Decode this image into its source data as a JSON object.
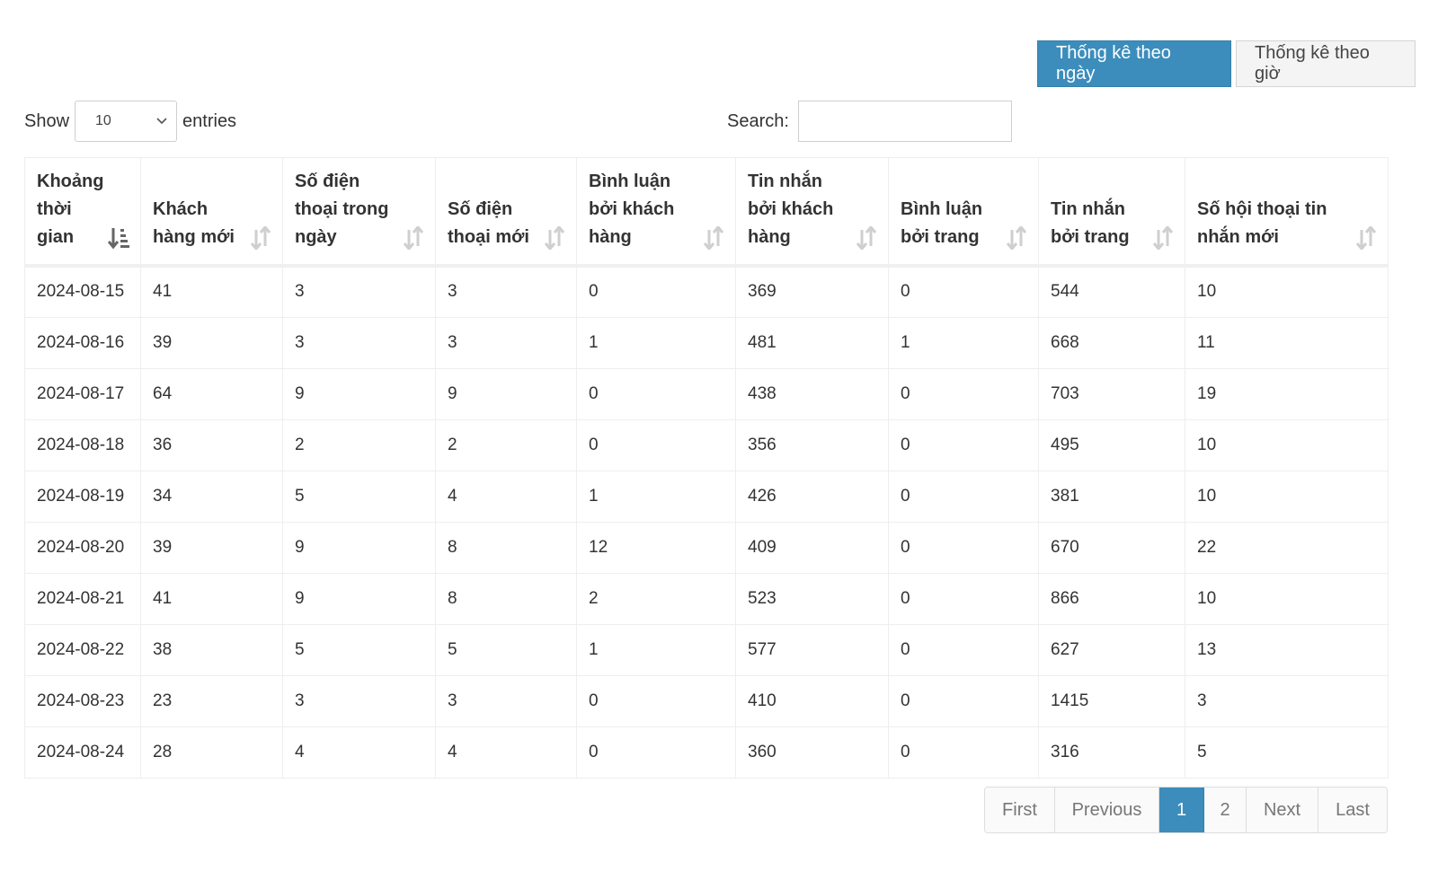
{
  "toggle": {
    "by_day": "Thống kê theo ngày",
    "by_hour": "Thống kê theo giờ"
  },
  "length": {
    "show_label": "Show",
    "value": "10",
    "entries_label": "entries"
  },
  "search": {
    "label": "Search:",
    "value": "",
    "placeholder": ""
  },
  "table": {
    "columns": [
      "Khoảng thời gian",
      "Khách hàng mới",
      "Số điện thoại trong ngày",
      "Số điện thoại mới",
      "Bình luận bởi khách hàng",
      "Tin nhắn bởi khách hàng",
      "Bình luận bởi trang",
      "Tin nhắn bởi trang",
      "Số hội thoại tin nhắn mới"
    ],
    "sort_column": 0,
    "rows": [
      [
        "2024-08-15",
        "41",
        "3",
        "3",
        "0",
        "369",
        "0",
        "544",
        "10"
      ],
      [
        "2024-08-16",
        "39",
        "3",
        "3",
        "1",
        "481",
        "1",
        "668",
        "11"
      ],
      [
        "2024-08-17",
        "64",
        "9",
        "9",
        "0",
        "438",
        "0",
        "703",
        "19"
      ],
      [
        "2024-08-18",
        "36",
        "2",
        "2",
        "0",
        "356",
        "0",
        "495",
        "10"
      ],
      [
        "2024-08-19",
        "34",
        "5",
        "4",
        "1",
        "426",
        "0",
        "381",
        "10"
      ],
      [
        "2024-08-20",
        "39",
        "9",
        "8",
        "12",
        "409",
        "0",
        "670",
        "22"
      ],
      [
        "2024-08-21",
        "41",
        "9",
        "8",
        "2",
        "523",
        "0",
        "866",
        "10"
      ],
      [
        "2024-08-22",
        "38",
        "5",
        "5",
        "1",
        "577",
        "0",
        "627",
        "13"
      ],
      [
        "2024-08-23",
        "23",
        "3",
        "3",
        "0",
        "410",
        "0",
        "1415",
        "3"
      ],
      [
        "2024-08-24",
        "28",
        "4",
        "4",
        "0",
        "360",
        "0",
        "316",
        "5"
      ]
    ]
  },
  "pagination": {
    "first": "First",
    "previous": "Previous",
    "pages": [
      "1",
      "2"
    ],
    "current": "1",
    "next": "Next",
    "last": "Last"
  },
  "colors": {
    "accent": "#3c8dbc",
    "border": "#eeeeee"
  }
}
